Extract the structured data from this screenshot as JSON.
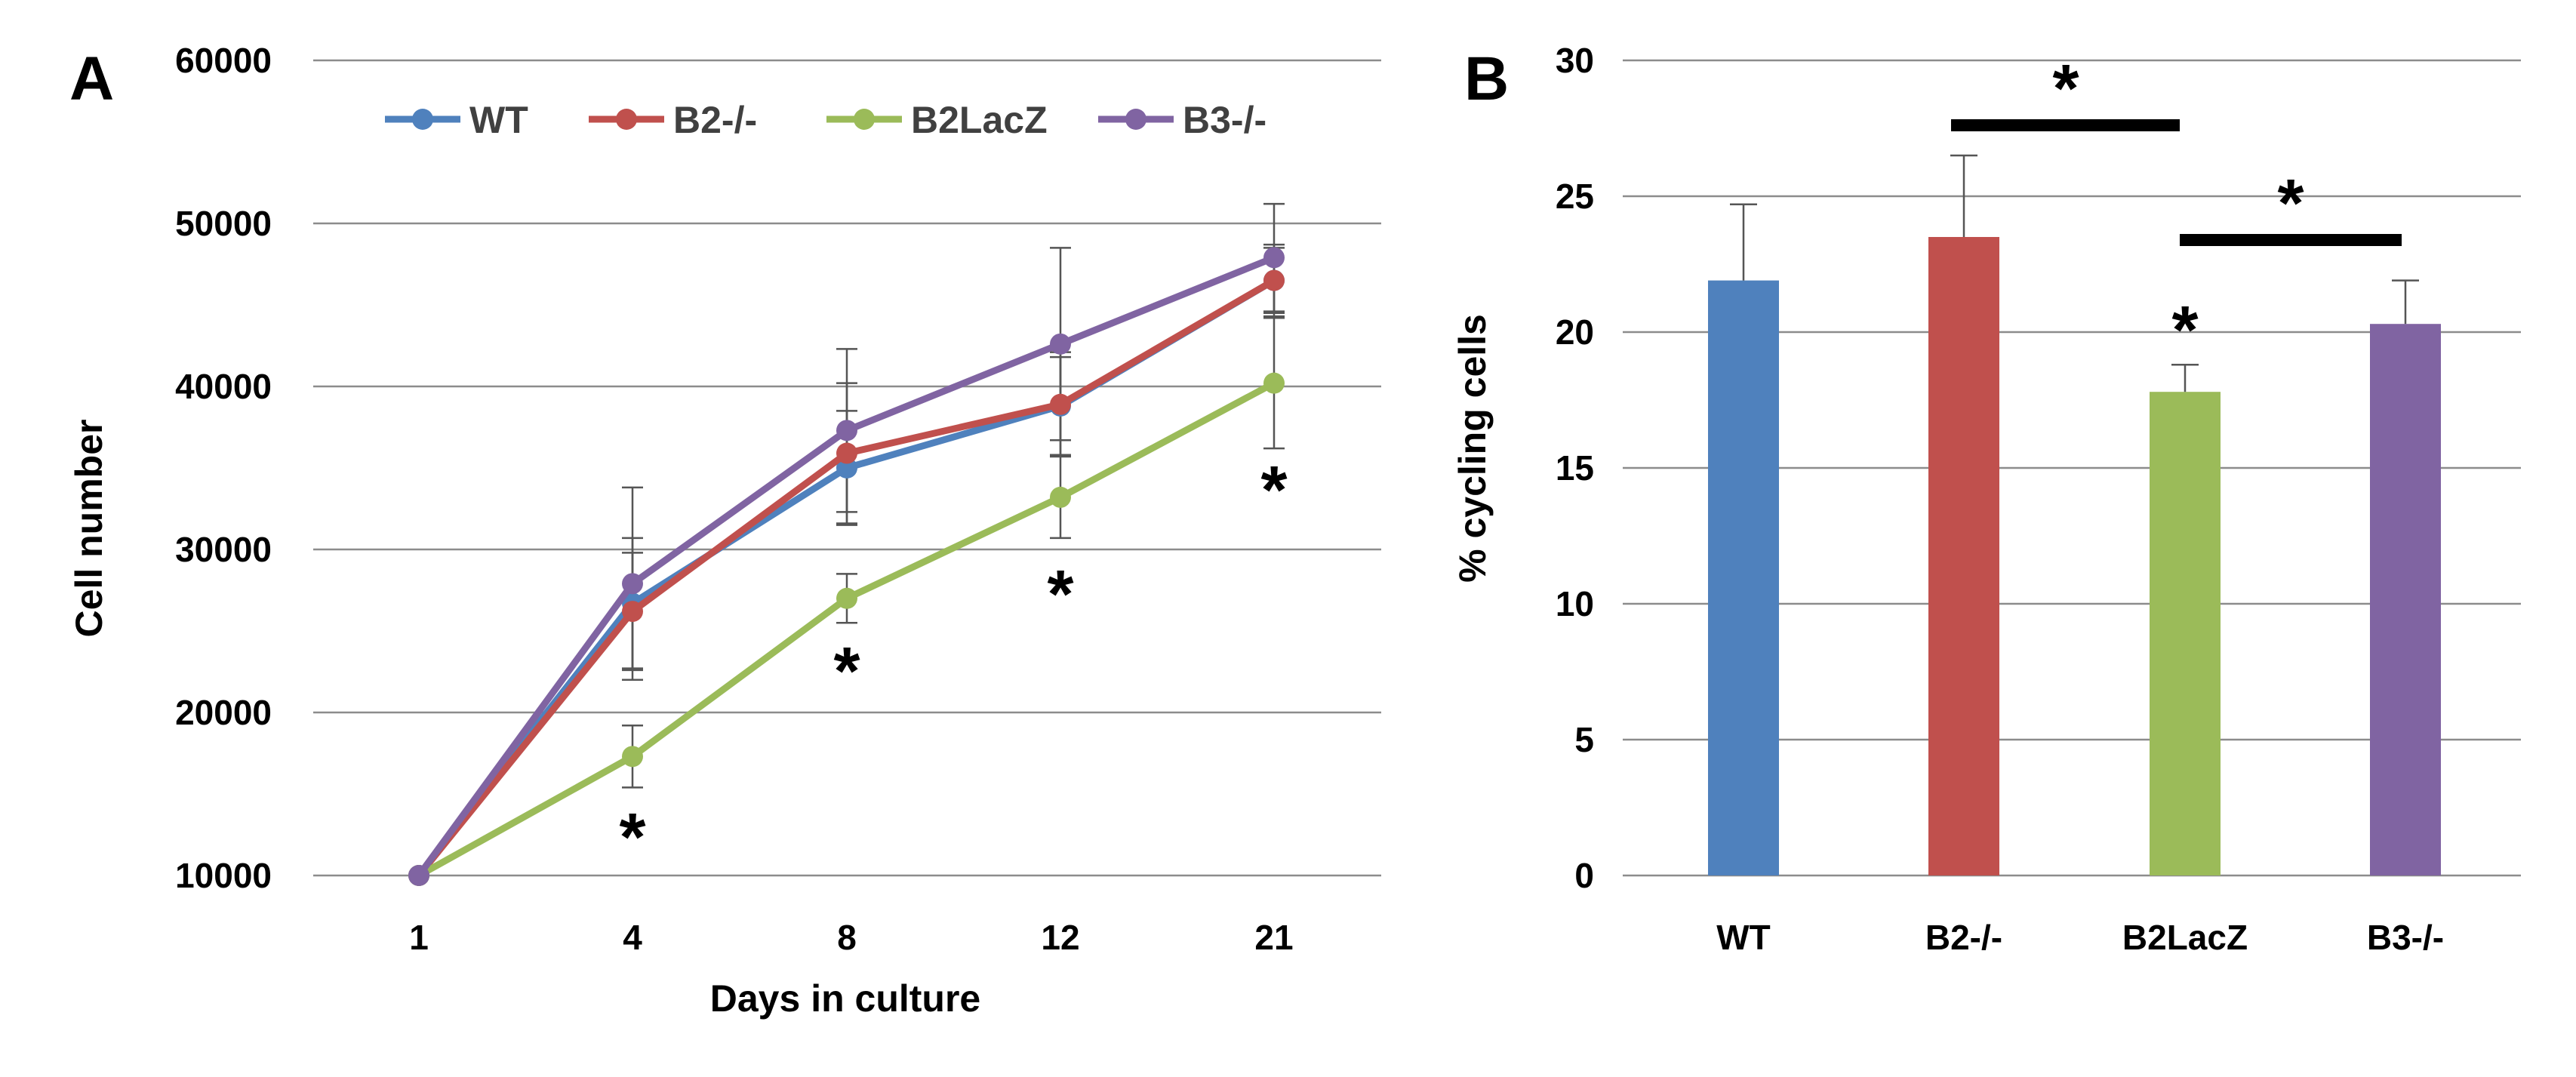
{
  "chart_data": [
    {
      "panel": "A",
      "type": "line",
      "xlabel": "Days in culture",
      "ylabel": "Cell number",
      "categories": [
        "1",
        "4",
        "8",
        "12",
        "21"
      ],
      "ylim": [
        10000,
        60000
      ],
      "yticks": [
        10000,
        20000,
        30000,
        40000,
        50000,
        60000
      ],
      "grid": true,
      "legend_position": "top",
      "series": [
        {
          "name": "WT",
          "color": "#4f81bd",
          "values": [
            10000,
            26700,
            35000,
            38800,
            46500
          ],
          "errors": [
            0,
            4000,
            3500,
            3000,
            2000
          ]
        },
        {
          "name": "B2-/-",
          "color": "#c0504d",
          "values": [
            10000,
            26200,
            35900,
            38900,
            46500
          ],
          "errors": [
            0,
            3600,
            4300,
            3200,
            2200
          ]
        },
        {
          "name": "B2LacZ",
          "color": "#9bbb59",
          "values": [
            10000,
            17300,
            27000,
            33200,
            40200
          ],
          "errors": [
            0,
            1900,
            1500,
            2500,
            4000
          ]
        },
        {
          "name": "B3-/-",
          "color": "#8064a2",
          "values": [
            10000,
            27900,
            37300,
            42600,
            47900
          ],
          "errors": [
            0,
            5900,
            5000,
            5900,
            3300
          ]
        }
      ],
      "annotations": [
        {
          "text": "*",
          "category": "4"
        },
        {
          "text": "*",
          "category": "8"
        },
        {
          "text": "*",
          "category": "12"
        },
        {
          "text": "*",
          "category": "21"
        }
      ]
    },
    {
      "panel": "B",
      "type": "bar",
      "xlabel": "",
      "ylabel": "% cycling cells",
      "categories": [
        "WT",
        "B2-/-",
        "B2LacZ",
        "B3-/-"
      ],
      "colors": [
        "#4f81bd",
        "#c0504d",
        "#9bbb59",
        "#8064a2"
      ],
      "values": [
        21.9,
        23.5,
        17.8,
        20.3
      ],
      "errors": [
        2.8,
        3.0,
        1.0,
        1.6
      ],
      "ylim": [
        0,
        30
      ],
      "yticks": [
        0,
        5,
        10,
        15,
        20,
        25,
        30
      ],
      "grid": true,
      "annotations": [
        {
          "text": "*",
          "from": "B2-/-",
          "to": "B2LacZ"
        },
        {
          "text": "*",
          "from": "B2LacZ",
          "to": "B3-/-"
        },
        {
          "text": "*",
          "category": "B2LacZ"
        }
      ]
    }
  ]
}
